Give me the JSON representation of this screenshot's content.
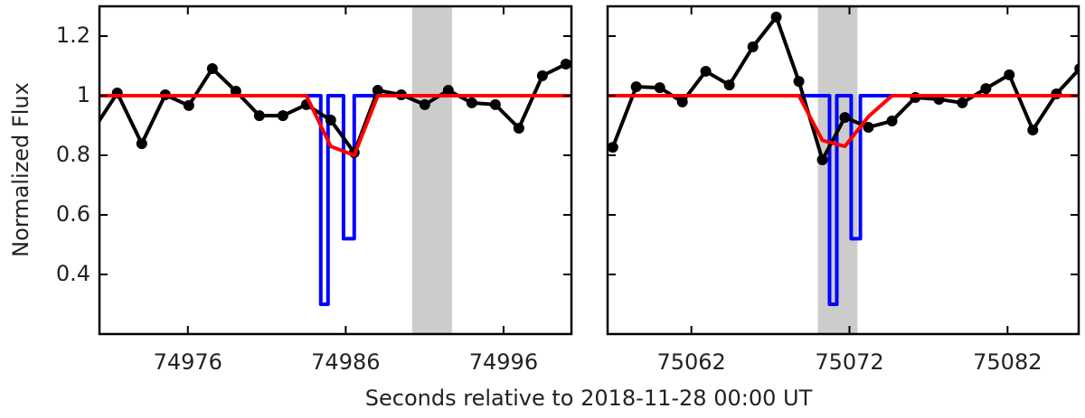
{
  "chart_data": [
    {
      "type": "line",
      "ylabel": "Normalized Flux",
      "xlabel": "Seconds relative to 2018-11-28 00:00 UT",
      "xlim": [
        74970.4,
        75000.3
      ],
      "xticks": [
        74976,
        74986,
        74996
      ],
      "ylim": [
        0.2,
        1.3
      ],
      "yticks": [
        0.4,
        0.6,
        0.8,
        1.0,
        1.2
      ],
      "ytick_labels": true,
      "shade": [
        74990.21,
        74992.73
      ],
      "shade_color": "#cccccc",
      "series": [
        {
          "color": "#0000ff",
          "marker": false,
          "x": [
            74970.4,
            74984.42,
            74984.42,
            74984.88,
            74984.88,
            74985.86,
            74985.86,
            74986.54,
            74986.54,
            75000.3
          ],
          "values": [
            1.0,
            1.0,
            0.3,
            0.3,
            1.0,
            1.0,
            0.52,
            0.52,
            1.0,
            1.0
          ]
        },
        {
          "color": "#000000",
          "marker": true,
          "x": [
            74970.04,
            74971.53,
            74973.08,
            74974.57,
            74976.06,
            74977.55,
            74979.04,
            74980.53,
            74982.02,
            74983.51,
            74985.05,
            74986.54,
            74988.03,
            74989.52,
            74991.01,
            74992.5,
            74993.99,
            74995.48,
            74996.97,
            74998.46,
            74999.95
          ],
          "values": [
            0.888,
            1.009,
            0.839,
            1.003,
            0.967,
            1.091,
            1.015,
            0.933,
            0.933,
            0.97,
            0.918,
            0.809,
            1.018,
            1.003,
            0.97,
            1.018,
            0.976,
            0.97,
            0.891,
            1.067,
            1.106
          ]
        },
        {
          "color": "#ff0000",
          "marker": false,
          "x": [
            74970.4,
            74983.51,
            74985.05,
            74986.54,
            74988.03,
            75000.3
          ],
          "values": [
            1.0,
            1.0,
            0.83,
            0.8,
            1.0,
            1.0
          ]
        }
      ]
    },
    {
      "type": "line",
      "xlim": [
        75056.7,
        75086.5
      ],
      "xticks": [
        75062,
        75072,
        75082
      ],
      "ylim": [
        0.2,
        1.3
      ],
      "yticks": [
        0.4,
        0.6,
        0.8,
        1.0,
        1.2
      ],
      "ytick_labels": false,
      "shade": [
        75070.0,
        75072.51
      ],
      "shade_color": "#cccccc",
      "series": [
        {
          "color": "#0000ff",
          "marker": false,
          "x": [
            75056.7,
            75070.74,
            75070.74,
            75071.2,
            75071.2,
            75072.11,
            75072.11,
            75072.69,
            75072.69,
            75086.5
          ],
          "values": [
            1.0,
            1.0,
            0.3,
            0.3,
            1.0,
            1.0,
            0.52,
            0.52,
            1.0,
            1.0
          ]
        },
        {
          "color": "#000000",
          "marker": true,
          "x": [
            75057.03,
            75058.51,
            75060.0,
            75061.43,
            75062.91,
            75064.4,
            75065.89,
            75067.37,
            75068.8,
            75070.29,
            75071.71,
            75073.2,
            75074.69,
            75076.17,
            75077.66,
            75079.14,
            75080.63,
            75082.11,
            75083.6,
            75085.09,
            75086.57
          ],
          "values": [
            0.827,
            1.03,
            1.027,
            0.979,
            1.082,
            1.036,
            1.164,
            1.264,
            1.048,
            0.785,
            0.927,
            0.894,
            0.915,
            0.994,
            0.988,
            0.976,
            1.024,
            1.07,
            0.885,
            1.006,
            1.091
          ]
        },
        {
          "color": "#ff0000",
          "marker": false,
          "x": [
            75056.7,
            75068.8,
            75070.29,
            75071.71,
            75073.2,
            75074.69,
            75086.5
          ],
          "values": [
            1.0,
            1.0,
            0.85,
            0.83,
            0.93,
            1.0,
            1.0
          ]
        }
      ]
    }
  ]
}
